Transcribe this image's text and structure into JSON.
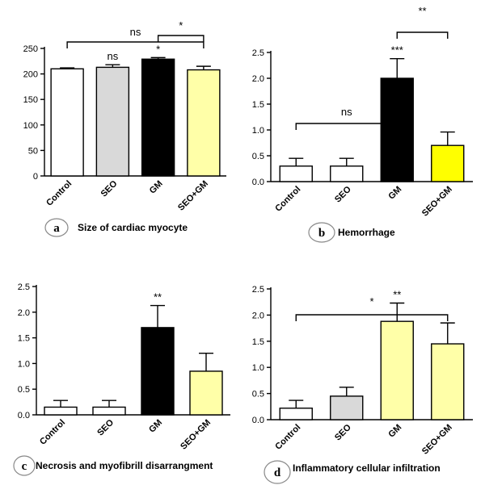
{
  "chart_data": [
    {
      "type": "bar",
      "panel": "a",
      "caption": "Size of cardiac myocyte",
      "categories": [
        "Control",
        "SEO",
        "GM",
        "SEO+GM"
      ],
      "values": [
        210,
        213,
        229,
        208
      ],
      "errors": [
        2,
        5,
        3,
        7
      ],
      "colors": [
        "#ffffff",
        "#d9d9d9",
        "#000000",
        "#ffffa8"
      ],
      "ylim": [
        0,
        250
      ],
      "yticks": [
        0,
        50,
        100,
        150,
        200,
        250
      ],
      "bar_labels": [
        "",
        "ns",
        "*",
        ""
      ],
      "brackets": [
        {
          "from": 0,
          "to": 3,
          "label": "ns"
        },
        {
          "from": 2,
          "to": 3,
          "label": "*"
        }
      ]
    },
    {
      "type": "bar",
      "panel": "b",
      "caption": "Hemorrhage",
      "categories": [
        "Control",
        "SEO",
        "GM",
        "SEO+GM"
      ],
      "values": [
        0.3,
        0.3,
        2.0,
        0.7
      ],
      "errors": [
        0.15,
        0.15,
        0.38,
        0.26
      ],
      "colors": [
        "#ffffff",
        "#ffffff",
        "#000000",
        "#ffff00"
      ],
      "ylim": [
        0,
        2.5
      ],
      "yticks": [
        "0.0",
        "0.5",
        "1.0",
        "1.5",
        "2.0",
        "2.5"
      ],
      "bar_labels": [
        "",
        "",
        "***",
        ""
      ],
      "brackets": [
        {
          "from": 0,
          "to": 2,
          "label": "ns"
        },
        {
          "from": 2,
          "to": 3,
          "label": "**"
        }
      ]
    },
    {
      "type": "bar",
      "panel": "c",
      "caption": "Necrosis and myofibrill disarrangment",
      "categories": [
        "Control",
        "SEO",
        "GM",
        "SEO+GM"
      ],
      "values": [
        0.15,
        0.15,
        1.7,
        0.85
      ],
      "errors": [
        0.13,
        0.13,
        0.43,
        0.35
      ],
      "colors": [
        "#ffffff",
        "#ffffff",
        "#000000",
        "#ffffa8"
      ],
      "ylim": [
        0,
        2.5
      ],
      "yticks": [
        "0.0",
        "0.5",
        "1.0",
        "1.5",
        "2.0",
        "2.5"
      ],
      "bar_labels": [
        "",
        "",
        "**",
        ""
      ],
      "brackets": []
    },
    {
      "type": "bar",
      "panel": "d",
      "caption": "Inflammatory cellular infiltration",
      "categories": [
        "Control",
        "SEO",
        "GM",
        "SEO+GM"
      ],
      "values": [
        0.22,
        0.45,
        1.88,
        1.45
      ],
      "errors": [
        0.15,
        0.17,
        0.35,
        0.4
      ],
      "colors": [
        "#ffffff",
        "#d9d9d9",
        "#ffffa8",
        "#ffffa8"
      ],
      "ylim": [
        0,
        2.5
      ],
      "yticks": [
        "0.0",
        "0.5",
        "1.0",
        "1.5",
        "2.0",
        "2.5"
      ],
      "bar_labels": [
        "",
        "",
        "**",
        ""
      ],
      "brackets": [
        {
          "from": 0,
          "to": 3,
          "label": "*"
        }
      ]
    }
  ]
}
